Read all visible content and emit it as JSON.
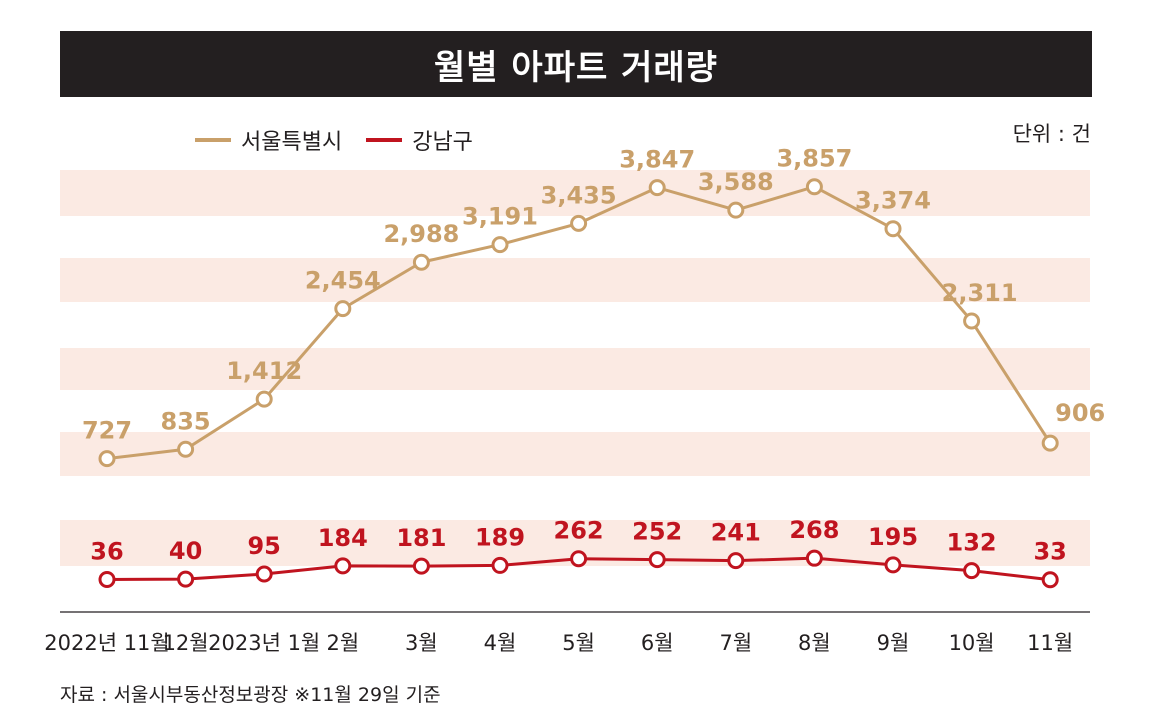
{
  "chart_data": {
    "type": "line",
    "title": "월별 아파트 거래량",
    "unit_label": "단위 : 건",
    "categories": [
      "2022년 11월",
      "12월",
      "2023년 1월",
      "2월",
      "3월",
      "4월",
      "5월",
      "6월",
      "7월",
      "8월",
      "9월",
      "10월",
      "11월"
    ],
    "series": [
      {
        "name": "서울특별시",
        "color": "#c9a06a",
        "values": [
          727,
          835,
          1412,
          2454,
          2988,
          3191,
          3435,
          3847,
          3588,
          3857,
          3374,
          2311,
          906
        ],
        "labels": [
          "727",
          "835",
          "1,412",
          "2,454",
          "2,988",
          "3,191",
          "3,435",
          "3,847",
          "3,588",
          "3,857",
          "3,374",
          "2,311",
          "906"
        ]
      },
      {
        "name": "강남구",
        "color": "#c0141f",
        "values": [
          36,
          40,
          95,
          184,
          181,
          189,
          262,
          252,
          241,
          268,
          195,
          132,
          33
        ],
        "labels": [
          "36",
          "40",
          "95",
          "184",
          "181",
          "189",
          "262",
          "252",
          "241",
          "268",
          "195",
          "132",
          "33"
        ]
      }
    ],
    "source_note": "자료 : 서울시부동산정보광장 ※11월 29일 기준"
  }
}
